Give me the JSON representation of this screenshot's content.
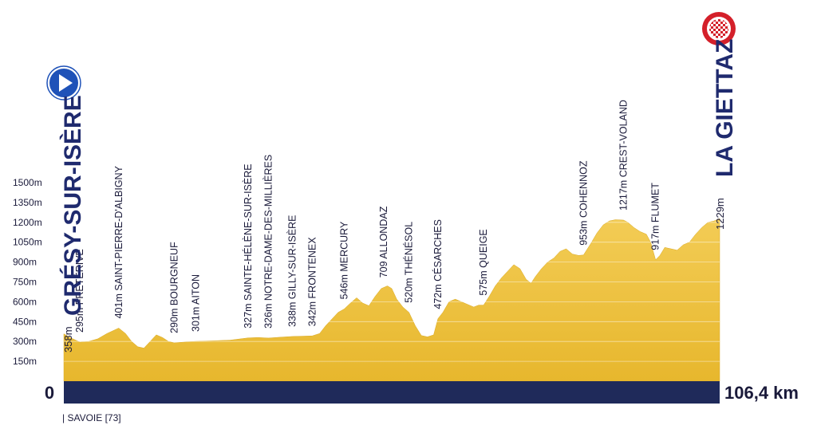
{
  "chart_data": {
    "type": "area",
    "y_ticks": [
      "150m",
      "300m",
      "450m",
      "600m",
      "750m",
      "900m",
      "1050m",
      "1200m",
      "1350m",
      "1500m"
    ],
    "x_start_label": "0",
    "x_end_label": "106,4 km",
    "department_label": "| SAVOIE [73]",
    "start": {
      "name": "GRÉSY-SUR-ISÈRE",
      "elevation_label": "358m",
      "icon": "play-icon"
    },
    "finish": {
      "name": "LA GIETTAZ",
      "elevation_label": "1229m",
      "icon": "checkered-flag-icon"
    },
    "waypoints": [
      {
        "label": "295m FRETÉRIVE",
        "km": 2.6,
        "elev": 295
      },
      {
        "label": "401m SAINT-PIERRE-D'ALBIGNY",
        "km": 8.9,
        "elev": 401
      },
      {
        "label": "290m BOURGNEUF",
        "km": 17.9,
        "elev": 290
      },
      {
        "label": "301m AITON",
        "km": 21.4,
        "elev": 301
      },
      {
        "label": "327m SAINTE-HÉLÈNE-SUR-ISÈRE",
        "km": 29.9,
        "elev": 327
      },
      {
        "label": "326m NOTRE-DAME-DES-MILLIÈRES",
        "km": 33.2,
        "elev": 326
      },
      {
        "label": "338m GILLY-SUR-ISÈRE",
        "km": 37.1,
        "elev": 338
      },
      {
        "label": "342m FRONTENEX",
        "km": 40.3,
        "elev": 342
      },
      {
        "label": "546m MERCURY",
        "km": 45.5,
        "elev": 546
      },
      {
        "label": "709 ALLONDAZ",
        "km": 51.9,
        "elev": 709
      },
      {
        "label": "520m THÉNÉSOL",
        "km": 56.0,
        "elev": 520
      },
      {
        "label": "472m CÉSARCHES",
        "km": 60.7,
        "elev": 472
      },
      {
        "label": "575m QUEIGE",
        "km": 68.1,
        "elev": 575
      },
      {
        "label": "953m COHENNOZ",
        "km": 84.3,
        "elev": 953
      },
      {
        "label": "1217m CREST-VOLAND",
        "km": 90.8,
        "elev": 1217
      },
      {
        "label": "917m FLUMET",
        "km": 96.0,
        "elev": 917
      }
    ],
    "profile": [
      [
        0,
        358
      ],
      [
        1,
        330
      ],
      [
        2.6,
        295
      ],
      [
        4,
        300
      ],
      [
        5.5,
        320
      ],
      [
        7,
        360
      ],
      [
        8.9,
        401
      ],
      [
        10,
        360
      ],
      [
        11,
        300
      ],
      [
        12,
        260
      ],
      [
        13,
        250
      ],
      [
        14,
        300
      ],
      [
        15,
        350
      ],
      [
        16,
        330
      ],
      [
        17,
        300
      ],
      [
        17.9,
        290
      ],
      [
        19.5,
        295
      ],
      [
        21.4,
        301
      ],
      [
        24,
        305
      ],
      [
        27,
        310
      ],
      [
        29.9,
        327
      ],
      [
        31.5,
        330
      ],
      [
        33.2,
        326
      ],
      [
        35,
        332
      ],
      [
        37.1,
        338
      ],
      [
        38.5,
        340
      ],
      [
        40.3,
        342
      ],
      [
        41.5,
        360
      ],
      [
        42.5,
        420
      ],
      [
        43.5,
        470
      ],
      [
        44.5,
        520
      ],
      [
        45.5,
        546
      ],
      [
        46.5,
        590
      ],
      [
        47.5,
        630
      ],
      [
        48.5,
        590
      ],
      [
        49.5,
        570
      ],
      [
        50.5,
        640
      ],
      [
        51.5,
        700
      ],
      [
        52.5,
        720
      ],
      [
        53.2,
        700
      ],
      [
        54,
        620
      ],
      [
        55,
        560
      ],
      [
        56,
        520
      ],
      [
        57,
        420
      ],
      [
        58,
        345
      ],
      [
        59,
        335
      ],
      [
        60,
        350
      ],
      [
        60.7,
        472
      ],
      [
        61.5,
        520
      ],
      [
        62.5,
        600
      ],
      [
        63.5,
        620
      ],
      [
        64.5,
        600
      ],
      [
        65.5,
        580
      ],
      [
        66.5,
        560
      ],
      [
        67.3,
        575
      ],
      [
        68.1,
        575
      ],
      [
        69,
        640
      ],
      [
        70,
        720
      ],
      [
        71,
        780
      ],
      [
        72,
        830
      ],
      [
        73,
        880
      ],
      [
        74,
        850
      ],
      [
        75,
        770
      ],
      [
        75.8,
        740
      ],
      [
        76.5,
        790
      ],
      [
        77.5,
        850
      ],
      [
        78.5,
        900
      ],
      [
        79.5,
        930
      ],
      [
        80.5,
        980
      ],
      [
        81.5,
        1000
      ],
      [
        82.5,
        960
      ],
      [
        83.5,
        950
      ],
      [
        84.3,
        953
      ],
      [
        85.5,
        1040
      ],
      [
        86.5,
        1120
      ],
      [
        87.5,
        1180
      ],
      [
        88.5,
        1210
      ],
      [
        89.5,
        1220
      ],
      [
        90.8,
        1217
      ],
      [
        91.5,
        1200
      ],
      [
        92.5,
        1160
      ],
      [
        93.5,
        1130
      ],
      [
        94.5,
        1110
      ],
      [
        95.2,
        1050
      ],
      [
        96,
        917
      ],
      [
        96.7,
        950
      ],
      [
        97.5,
        1010
      ],
      [
        98.5,
        1000
      ],
      [
        99.5,
        990
      ],
      [
        100.5,
        1030
      ],
      [
        101.5,
        1050
      ],
      [
        102.5,
        1110
      ],
      [
        103.5,
        1160
      ],
      [
        104.5,
        1200
      ],
      [
        105.5,
        1210
      ],
      [
        106.4,
        1229
      ]
    ]
  },
  "colors": {
    "fill_top": "#f2c94c",
    "fill_bottom": "#e9b92f",
    "base_band": "#1f2a5a",
    "icon_blue": "#1f52b8",
    "icon_red": "#d4202a",
    "text_dark": "#1a1a3a"
  }
}
